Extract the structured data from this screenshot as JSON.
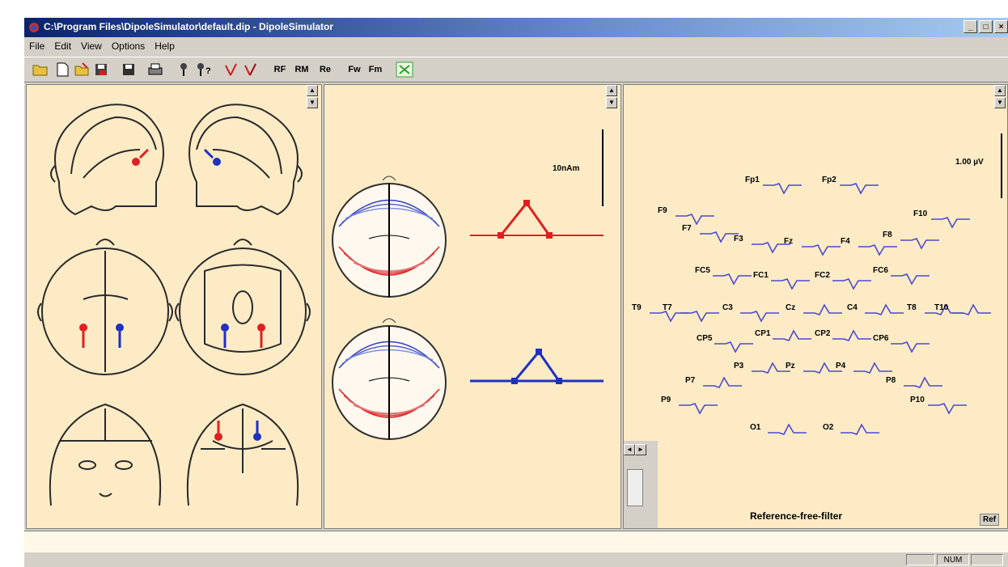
{
  "window": {
    "title": "C:\\Program Files\\DipoleSimulator\\default.dip - DipoleSimulator",
    "min_label": "_",
    "max_label": "□",
    "close_label": "×"
  },
  "menu": [
    "File",
    "Edit",
    "View",
    "Options",
    "Help"
  ],
  "toolbar": {
    "text_buttons": [
      "RF",
      "RM",
      "Re",
      "Fw",
      "Fm"
    ]
  },
  "center": {
    "scale_label": "10nAm"
  },
  "right": {
    "scale_label": "1.00 µV",
    "reference_label": "Reference-free-filter",
    "ref_button": "Ref",
    "channels": [
      {
        "label": "Fp1",
        "color": "#4a4ad0"
      },
      {
        "label": "Fp2",
        "color": "#4a4ad0"
      },
      {
        "label": "F9",
        "color": "#4a4ad0"
      },
      {
        "label": "F10",
        "color": "#4a4ad0"
      },
      {
        "label": "F7",
        "color": "#4a4ad0"
      },
      {
        "label": "F3",
        "color": "#4a4ad0"
      },
      {
        "label": "Fz",
        "color": "#4a4ad0"
      },
      {
        "label": "F4",
        "color": "#4a4ad0"
      },
      {
        "label": "F8",
        "color": "#4a4ad0"
      },
      {
        "label": "FC5",
        "color": "#4a4ad0"
      },
      {
        "label": "FC1",
        "color": "#4a4ad0"
      },
      {
        "label": "FC2",
        "color": "#4a4ad0"
      },
      {
        "label": "FC6",
        "color": "#4a4ad0"
      },
      {
        "label": "T9",
        "color": "#4a4ad0"
      },
      {
        "label": "T7",
        "color": "#4a4ad0"
      },
      {
        "label": "C3",
        "color": "#4a4ad0"
      },
      {
        "label": "Cz",
        "color": "#4a4ad0"
      },
      {
        "label": "C4",
        "color": "#4a4ad0"
      },
      {
        "label": "T8",
        "color": "#4a4ad0"
      },
      {
        "label": "T10",
        "color": "#4a4ad0"
      },
      {
        "label": "CP5",
        "color": "#4a4ad0"
      },
      {
        "label": "CP1",
        "color": "#4a4ad0"
      },
      {
        "label": "CP2",
        "color": "#4a4ad0"
      },
      {
        "label": "CP6",
        "color": "#4a4ad0"
      },
      {
        "label": "P7",
        "color": "#4a4ad0"
      },
      {
        "label": "P3",
        "color": "#4a4ad0"
      },
      {
        "label": "Pz",
        "color": "#4a4ad0"
      },
      {
        "label": "P4",
        "color": "#4a4ad0"
      },
      {
        "label": "P8",
        "color": "#4a4ad0"
      },
      {
        "label": "P9",
        "color": "#4a4ad0"
      },
      {
        "label": "P10",
        "color": "#4a4ad0"
      },
      {
        "label": "O1",
        "color": "#4a4ad0"
      },
      {
        "label": "O2",
        "color": "#4a4ad0"
      }
    ]
  },
  "statusbar": {
    "indicator": "NUM"
  },
  "colors": {
    "dipole_red": "#e02020",
    "dipole_blue": "#2030c0",
    "pane_bg": "#fdebc6"
  }
}
